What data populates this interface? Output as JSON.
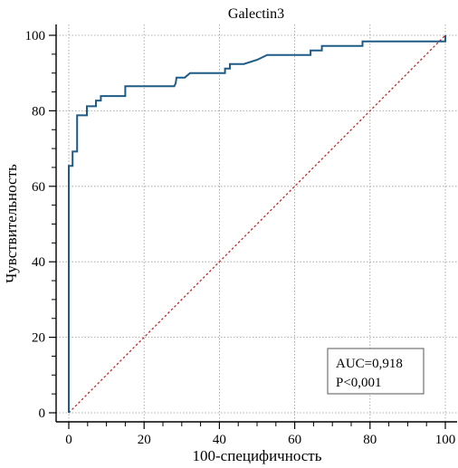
{
  "chart_data": {
    "type": "line",
    "title": "Galectin3",
    "xlabel": "100-специфичность",
    "ylabel": "Чувствительность",
    "xlim": [
      0,
      100
    ],
    "ylim": [
      0,
      100
    ],
    "x_ticks": [
      "0",
      "20",
      "40",
      "60",
      "80",
      "100"
    ],
    "y_ticks": [
      "0",
      "20",
      "40",
      "60",
      "80",
      "100"
    ],
    "grid": true,
    "series": [
      {
        "color": "#1f5b87",
        "points": [
          [
            0,
            0
          ],
          [
            0,
            65.4
          ],
          [
            1,
            65.4
          ],
          [
            1,
            69.2
          ],
          [
            2.2,
            69.2
          ],
          [
            2.2,
            78.8
          ],
          [
            4.8,
            78.8
          ],
          [
            4.8,
            81.2
          ],
          [
            7.2,
            81.2
          ],
          [
            7.2,
            82.7
          ],
          [
            8.5,
            82.7
          ],
          [
            8.5,
            83.9
          ],
          [
            15,
            83.9
          ],
          [
            15,
            86.5
          ],
          [
            28,
            86.5
          ],
          [
            28.4,
            87.3
          ],
          [
            28.6,
            88.8
          ],
          [
            30.8,
            88.8
          ],
          [
            32.2,
            90.0
          ],
          [
            41.5,
            90.0
          ],
          [
            41.5,
            91.2
          ],
          [
            42.8,
            91.2
          ],
          [
            42.8,
            92.4
          ],
          [
            46.5,
            92.4
          ],
          [
            50,
            93.5
          ],
          [
            52.7,
            94.8
          ],
          [
            64.2,
            94.8
          ],
          [
            64.2,
            96.0
          ],
          [
            67.2,
            96.0
          ],
          [
            67.2,
            97.2
          ],
          [
            78,
            97.2
          ],
          [
            78,
            98.4
          ],
          [
            100,
            98.4
          ],
          [
            100,
            100
          ]
        ]
      },
      {
        "color": "#c0272d",
        "dashed": true,
        "points": [
          [
            0,
            0
          ],
          [
            100,
            100
          ]
        ]
      }
    ],
    "annotation": {
      "lines": [
        "AUC=0,918",
        "P<0,001"
      ]
    }
  }
}
